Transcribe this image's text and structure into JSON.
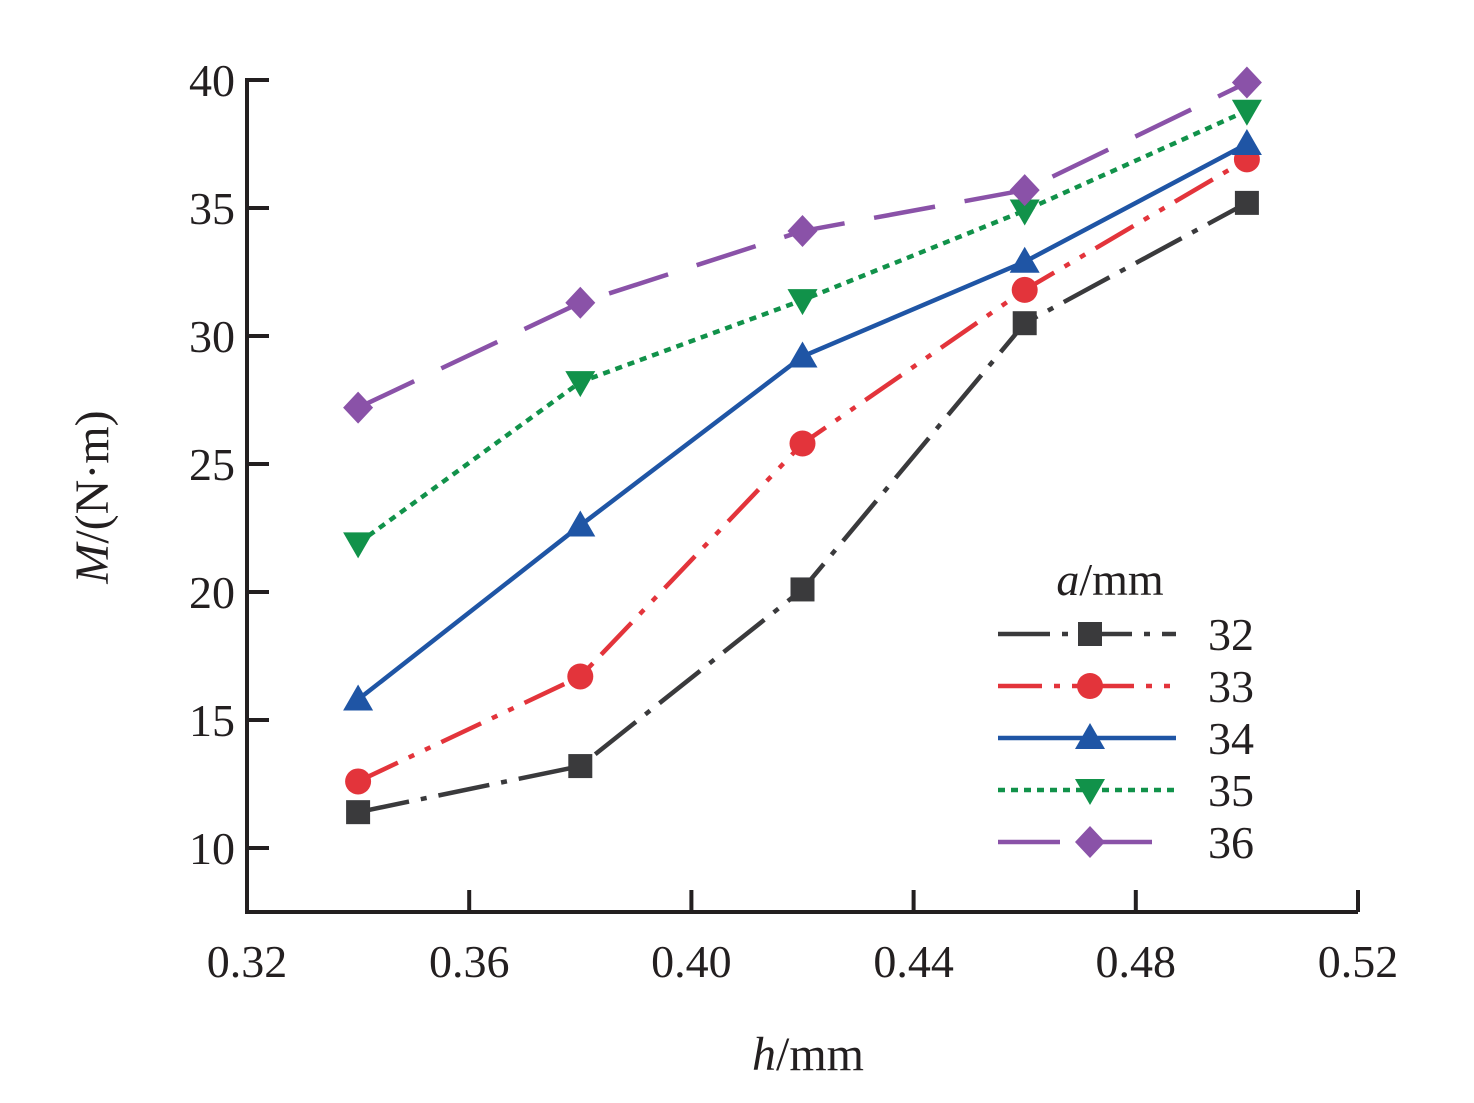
{
  "chart_data": {
    "type": "line",
    "xlabel": {
      "var": "h",
      "unit": "/mm"
    },
    "ylabel": {
      "var": "M",
      "unit": "/(N·m)"
    },
    "xlim": [
      0.32,
      0.52
    ],
    "ylim": [
      7.5,
      40
    ],
    "x_ticks": [
      "0.32",
      "0.36",
      "0.40",
      "0.44",
      "0.48",
      "0.52"
    ],
    "y_ticks": [
      "10",
      "15",
      "20",
      "25",
      "30",
      "35",
      "40"
    ],
    "legend_title": {
      "var": "a",
      "unit": "/mm"
    },
    "legend_position": "bottom-right",
    "grid": false,
    "series": [
      {
        "name": "32",
        "color": "#3a3a3c",
        "marker": "square",
        "line": "dashdot",
        "x": [
          0.34,
          0.38,
          0.42,
          0.46,
          0.5
        ],
        "values": [
          11.4,
          13.2,
          20.1,
          30.5,
          35.2
        ]
      },
      {
        "name": "33",
        "color": "#e3343b",
        "marker": "circle",
        "line": "dashdotdot",
        "x": [
          0.34,
          0.38,
          0.42,
          0.46,
          0.5
        ],
        "values": [
          12.6,
          16.7,
          25.8,
          31.8,
          36.9
        ]
      },
      {
        "name": "34",
        "color": "#1f55a5",
        "marker": "triangle-up",
        "line": "solid",
        "x": [
          0.34,
          0.38,
          0.42,
          0.46,
          0.5
        ],
        "values": [
          15.8,
          22.6,
          29.2,
          32.9,
          37.5
        ]
      },
      {
        "name": "35",
        "color": "#11924a",
        "marker": "triangle-down",
        "line": "dotted",
        "x": [
          0.34,
          0.38,
          0.42,
          0.46,
          0.5
        ],
        "values": [
          21.9,
          28.2,
          31.4,
          34.9,
          38.8
        ]
      },
      {
        "name": "36",
        "color": "#8a52a8",
        "marker": "diamond",
        "line": "longdash",
        "x": [
          0.34,
          0.38,
          0.42,
          0.46,
          0.5
        ],
        "values": [
          27.2,
          31.3,
          34.1,
          35.7,
          39.9
        ]
      }
    ]
  }
}
